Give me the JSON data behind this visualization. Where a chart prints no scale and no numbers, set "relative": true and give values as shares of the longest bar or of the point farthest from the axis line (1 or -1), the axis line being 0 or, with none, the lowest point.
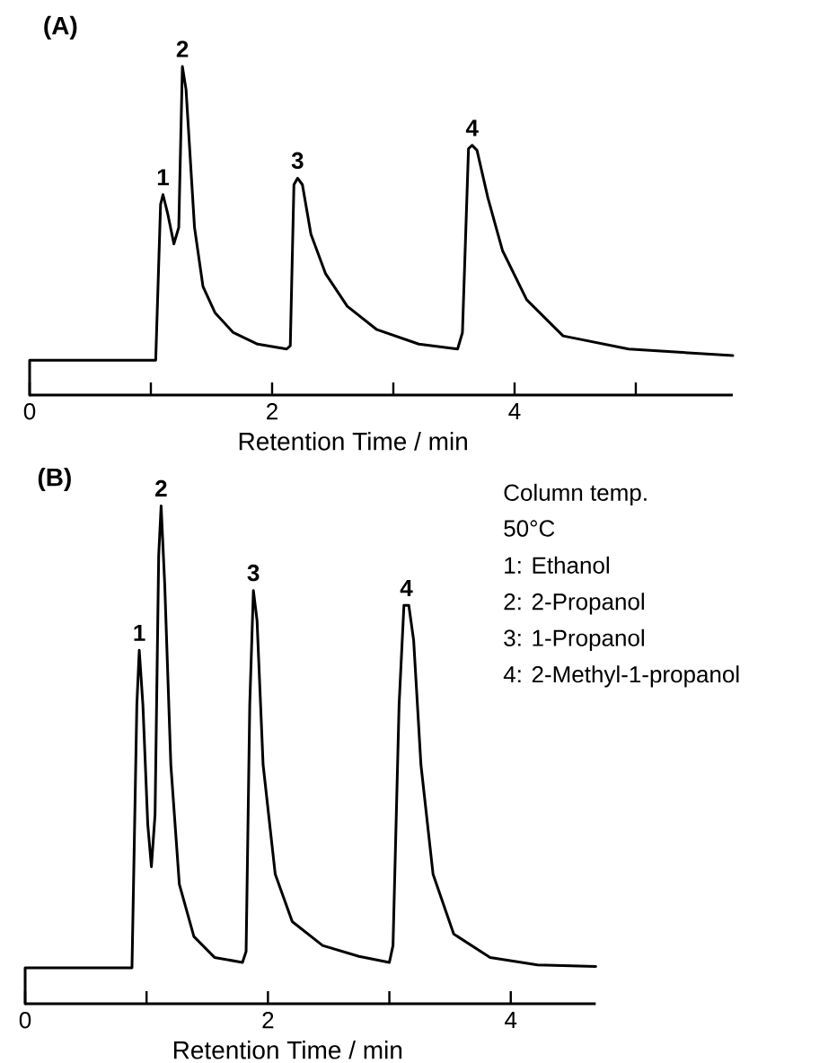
{
  "chart_data": [
    {
      "type": "line",
      "title": "(A)",
      "xlabel": "Retention Time / min",
      "relative": true,
      "color": "#000000",
      "xlim": [
        0,
        5.8
      ],
      "xticks": [
        0,
        {
          "value": 1,
          "label": null
        },
        2,
        {
          "value": 3,
          "label": null
        },
        4,
        {
          "value": 5,
          "label": null
        }
      ],
      "x": [
        0,
        0,
        1.04,
        1.08,
        1.1,
        1.14,
        1.19,
        1.23,
        1.26,
        1.29,
        1.36,
        1.43,
        1.53,
        1.68,
        1.88,
        2.12,
        2.15,
        2.18,
        2.21,
        2.25,
        2.32,
        2.44,
        2.62,
        2.86,
        3.21,
        3.53,
        3.57,
        3.62,
        3.65,
        3.69,
        3.78,
        3.9,
        4.1,
        4.4,
        4.94,
        5.8
      ],
      "values": [
        0,
        0.106,
        0.106,
        0.58,
        0.61,
        0.55,
        0.46,
        0.51,
        1,
        0.93,
        0.51,
        0.33,
        0.25,
        0.19,
        0.155,
        0.14,
        0.15,
        0.64,
        0.66,
        0.64,
        0.49,
        0.37,
        0.27,
        0.2,
        0.155,
        0.14,
        0.19,
        0.75,
        0.76,
        0.745,
        0.6,
        0.44,
        0.29,
        0.18,
        0.14,
        0.12
      ],
      "annotations": [
        {
          "text": "1",
          "x": 1.1,
          "y": 0.61
        },
        {
          "text": "2",
          "x": 1.26,
          "y": 1
        },
        {
          "text": "3",
          "x": 2.21,
          "y": 0.66
        },
        {
          "text": "4",
          "x": 3.65,
          "y": 0.76
        }
      ]
    },
    {
      "type": "line",
      "title": "(B)",
      "xlabel": "Retention Time / min",
      "relative": true,
      "color": "#000000",
      "xlim": [
        0,
        4.7
      ],
      "xticks": [
        0,
        {
          "value": 1,
          "label": null
        },
        2,
        {
          "value": 3,
          "label": null
        },
        4
      ],
      "x": [
        0,
        0,
        0.88,
        0.92,
        0.94,
        0.97,
        1.01,
        1.04,
        1.07,
        1.1,
        1.12,
        1.15,
        1.2,
        1.27,
        1.39,
        1.56,
        1.79,
        1.82,
        1.85,
        1.88,
        1.91,
        1.96,
        2.06,
        2.2,
        2.45,
        2.75,
        3,
        3.03,
        3.08,
        3.12,
        3.16,
        3.2,
        3.26,
        3.36,
        3.53,
        3.83,
        4.22,
        4.7
      ],
      "values": [
        0,
        0.072,
        0.072,
        0.6,
        0.71,
        0.6,
        0.36,
        0.275,
        0.38,
        0.9,
        1,
        0.84,
        0.48,
        0.24,
        0.135,
        0.093,
        0.083,
        0.105,
        0.6,
        0.83,
        0.77,
        0.48,
        0.26,
        0.165,
        0.117,
        0.095,
        0.083,
        0.117,
        0.6,
        0.8,
        0.8,
        0.73,
        0.48,
        0.26,
        0.14,
        0.093,
        0.078,
        0.075
      ],
      "annotations": [
        {
          "text": "1",
          "x": 0.94,
          "y": 0.71
        },
        {
          "text": "2",
          "x": 1.12,
          "y": 1
        },
        {
          "text": "3",
          "x": 1.88,
          "y": 0.83
        },
        {
          "text": "4",
          "x": 3.14,
          "y": 0.8
        },
        "Column temp.",
        "50°C",
        "1: Ethanol",
        "2: 2-Propanol",
        "3: 1-Propanol",
        "4: 2-Methyl-1-propanol"
      ]
    }
  ]
}
